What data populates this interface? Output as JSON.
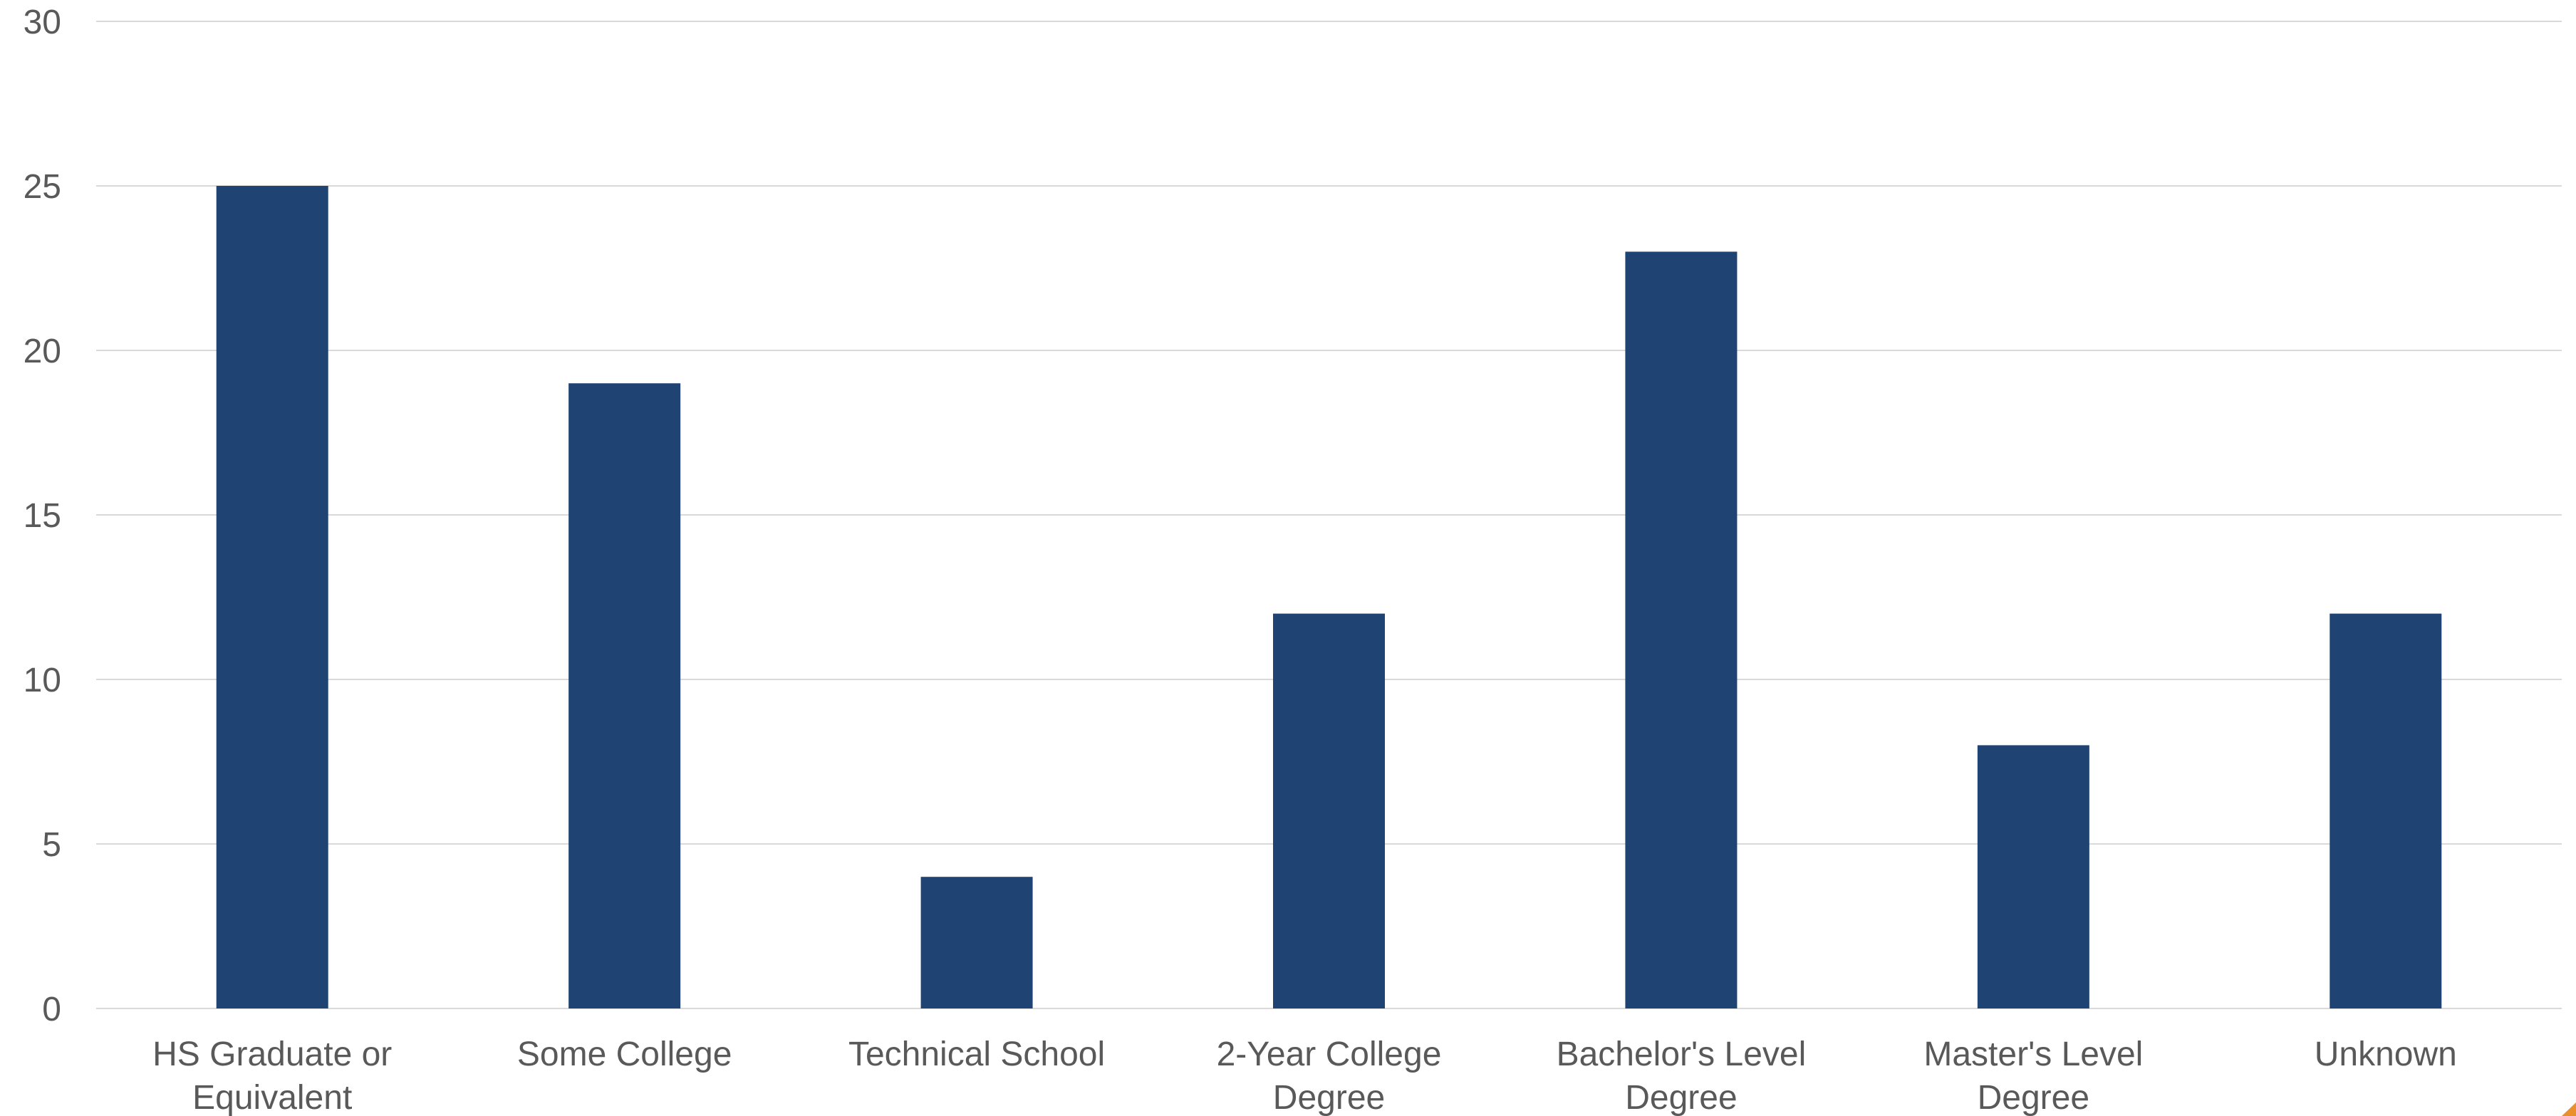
{
  "chart_data": {
    "type": "bar",
    "title": "",
    "xlabel": "",
    "ylabel": "",
    "categories": [
      [
        "HS Graduate or",
        "Equivalent"
      ],
      [
        "Some College"
      ],
      [
        "Technical School"
      ],
      [
        "2-Year College",
        "Degree"
      ],
      [
        "Bachelor's Level",
        "Degree"
      ],
      [
        "Master's Level",
        "Degree"
      ],
      [
        "Unknown"
      ]
    ],
    "values": [
      25,
      19,
      4,
      12,
      23,
      8,
      12
    ],
    "ylim": [
      0,
      30
    ],
    "yticks": [
      0,
      5,
      10,
      15,
      20,
      25,
      30
    ],
    "grid": true,
    "legend": "none",
    "colors": {
      "bar": "#1f4474",
      "grid": "#d9d9d9",
      "text": "#595959",
      "corner_accent": "#e8912d"
    }
  }
}
